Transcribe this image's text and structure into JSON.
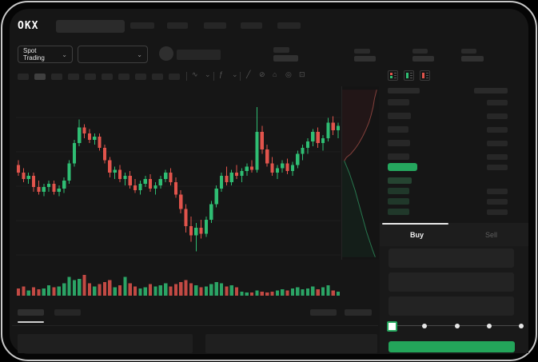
{
  "app": {
    "colors": {
      "up_green": "#2fbd73",
      "down_red": "#e1544c",
      "accent_green": "#25a75e",
      "buy_button_green": "#23a55a",
      "bid_row_green": "#20382a",
      "neutral_bar": "#272727"
    }
  },
  "header": {
    "logo_text": "OKX",
    "nav_placeholder_widths": [
      30,
      26,
      28,
      27,
      29
    ]
  },
  "market_bar": {
    "market_selector_label": "Spot Trading",
    "chevron_glyph": "⌄",
    "stat_groups": [
      {
        "label_w": 20,
        "value_w": 27
      },
      {
        "label_w": 19,
        "value_w": 27
      },
      {
        "label_w": 19,
        "value_w": 28
      }
    ]
  },
  "chart_toolbar": {
    "timeframe_count": 10,
    "active_timeframe_index": 1,
    "icons": [
      {
        "name": "candle-type-icon",
        "glyph": "∿"
      },
      {
        "name": "chevron-down-icon",
        "glyph": "⌄"
      },
      {
        "name": "indicators-icon",
        "glyph": "ƒ"
      },
      {
        "name": "chevron-down-icon",
        "glyph": "⌄"
      },
      {
        "name": "trendline-tool-icon",
        "glyph": "╱"
      },
      {
        "name": "eraser-tool-icon",
        "glyph": "⊘"
      },
      {
        "name": "snapshot-icon",
        "glyph": "⌂"
      },
      {
        "name": "chart-settings-icon",
        "glyph": "◎"
      },
      {
        "name": "fullscreen-icon",
        "glyph": "⊡"
      }
    ]
  },
  "orderbook": {
    "view_toggle_icons": [
      "orderbook-combined-view-icon",
      "orderbook-bids-view-icon",
      "orderbook-asks-view-icon"
    ],
    "ask_row_widths": [
      27,
      29,
      26,
      28,
      27
    ],
    "bid_row_widths": [
      30,
      27,
      27,
      27
    ],
    "right_col_width": 26
  },
  "trade_panel": {
    "buy_tab_label": "Buy",
    "sell_tab_label": "Sell",
    "input_count": 3,
    "slider": {
      "stops_percent": [
        0,
        25,
        50,
        75,
        100
      ],
      "active_index": 0
    }
  },
  "bottom_panel": {
    "left_tab_count": 2,
    "active_tab_index": 0,
    "right_placeholder_count": 2,
    "table_count": 2
  },
  "chart_data": {
    "type": "candlestick",
    "ylim": [
      0,
      105
    ],
    "grid": true,
    "candles": [
      [
        63,
        66,
        56,
        58
      ],
      [
        58,
        61,
        52,
        54
      ],
      [
        54,
        58,
        51,
        56
      ],
      [
        56,
        58,
        46,
        49
      ],
      [
        49,
        53,
        44,
        46
      ],
      [
        46,
        51,
        43,
        49
      ],
      [
        49,
        53,
        46,
        51
      ],
      [
        51,
        53,
        44,
        46
      ],
      [
        46,
        50,
        43,
        48
      ],
      [
        48,
        55,
        45,
        53
      ],
      [
        53,
        66,
        51,
        64
      ],
      [
        64,
        79,
        62,
        77
      ],
      [
        77,
        92,
        75,
        87
      ],
      [
        87,
        89,
        80,
        83
      ],
      [
        83,
        86,
        77,
        79
      ],
      [
        79,
        83,
        76,
        81
      ],
      [
        81,
        83,
        72,
        74
      ],
      [
        74,
        76,
        64,
        66
      ],
      [
        66,
        68,
        55,
        58
      ],
      [
        58,
        62,
        54,
        60
      ],
      [
        60,
        63,
        52,
        54
      ],
      [
        54,
        58,
        50,
        56
      ],
      [
        56,
        59,
        48,
        50
      ],
      [
        50,
        54,
        45,
        47
      ],
      [
        47,
        53,
        44,
        51
      ],
      [
        51,
        56,
        49,
        54
      ],
      [
        54,
        57,
        46,
        48
      ],
      [
        48,
        52,
        44,
        50
      ],
      [
        50,
        56,
        48,
        54
      ],
      [
        54,
        60,
        52,
        58
      ],
      [
        58,
        61,
        50,
        52
      ],
      [
        52,
        55,
        42,
        44
      ],
      [
        44,
        47,
        32,
        35
      ],
      [
        35,
        38,
        20,
        24
      ],
      [
        24,
        30,
        14,
        18
      ],
      [
        18,
        26,
        8,
        23
      ],
      [
        23,
        28,
        16,
        19
      ],
      [
        19,
        30,
        17,
        28
      ],
      [
        28,
        40,
        26,
        38
      ],
      [
        38,
        50,
        36,
        48
      ],
      [
        48,
        58,
        46,
        56
      ],
      [
        56,
        62,
        50,
        52
      ],
      [
        52,
        60,
        50,
        58
      ],
      [
        58,
        63,
        54,
        56
      ],
      [
        56,
        61,
        52,
        59
      ],
      [
        59,
        64,
        56,
        62
      ],
      [
        62,
        66,
        58,
        60
      ],
      [
        60,
        100,
        58,
        84
      ],
      [
        84,
        88,
        70,
        73
      ],
      [
        73,
        76,
        62,
        64
      ],
      [
        64,
        68,
        56,
        58
      ],
      [
        58,
        63,
        54,
        61
      ],
      [
        61,
        66,
        58,
        64
      ],
      [
        64,
        67,
        57,
        59
      ],
      [
        59,
        65,
        56,
        63
      ],
      [
        63,
        72,
        61,
        70
      ],
      [
        70,
        76,
        66,
        74
      ],
      [
        74,
        80,
        70,
        78
      ],
      [
        78,
        86,
        75,
        84
      ],
      [
        84,
        87,
        74,
        77
      ],
      [
        77,
        82,
        72,
        80
      ],
      [
        80,
        93,
        78,
        90
      ],
      [
        90,
        94,
        82,
        85
      ],
      [
        85,
        90,
        80,
        88
      ]
    ],
    "volumes": [
      7,
      9,
      5,
      8,
      6,
      7,
      10,
      8,
      9,
      12,
      18,
      15,
      16,
      20,
      12,
      9,
      11,
      13,
      15,
      8,
      10,
      18,
      12,
      9,
      7,
      8,
      11,
      9,
      10,
      12,
      9,
      11,
      13,
      15,
      12,
      10,
      8,
      9,
      11,
      13,
      12,
      9,
      10,
      8,
      4,
      3,
      3,
      5,
      4,
      3,
      4,
      5,
      6,
      5,
      7,
      8,
      6,
      7,
      9,
      6,
      8,
      10,
      5,
      4
    ],
    "depth": {
      "asks": [
        [
          0.96,
          0.02
        ],
        [
          0.9,
          0.07
        ],
        [
          0.86,
          0.12
        ],
        [
          0.8,
          0.17
        ],
        [
          0.74,
          0.21
        ],
        [
          0.66,
          0.25
        ],
        [
          0.57,
          0.29
        ],
        [
          0.46,
          0.33
        ],
        [
          0.36,
          0.36
        ],
        [
          0.24,
          0.39
        ],
        [
          0.12,
          0.41
        ],
        [
          0.06,
          0.43
        ]
      ],
      "bids": [
        [
          0.06,
          0.43
        ],
        [
          0.12,
          0.46
        ],
        [
          0.2,
          0.5
        ],
        [
          0.28,
          0.55
        ],
        [
          0.36,
          0.6
        ],
        [
          0.44,
          0.66
        ],
        [
          0.52,
          0.72
        ],
        [
          0.6,
          0.78
        ],
        [
          0.68,
          0.84
        ],
        [
          0.76,
          0.89
        ],
        [
          0.84,
          0.94
        ],
        [
          0.92,
          0.985
        ]
      ]
    }
  }
}
